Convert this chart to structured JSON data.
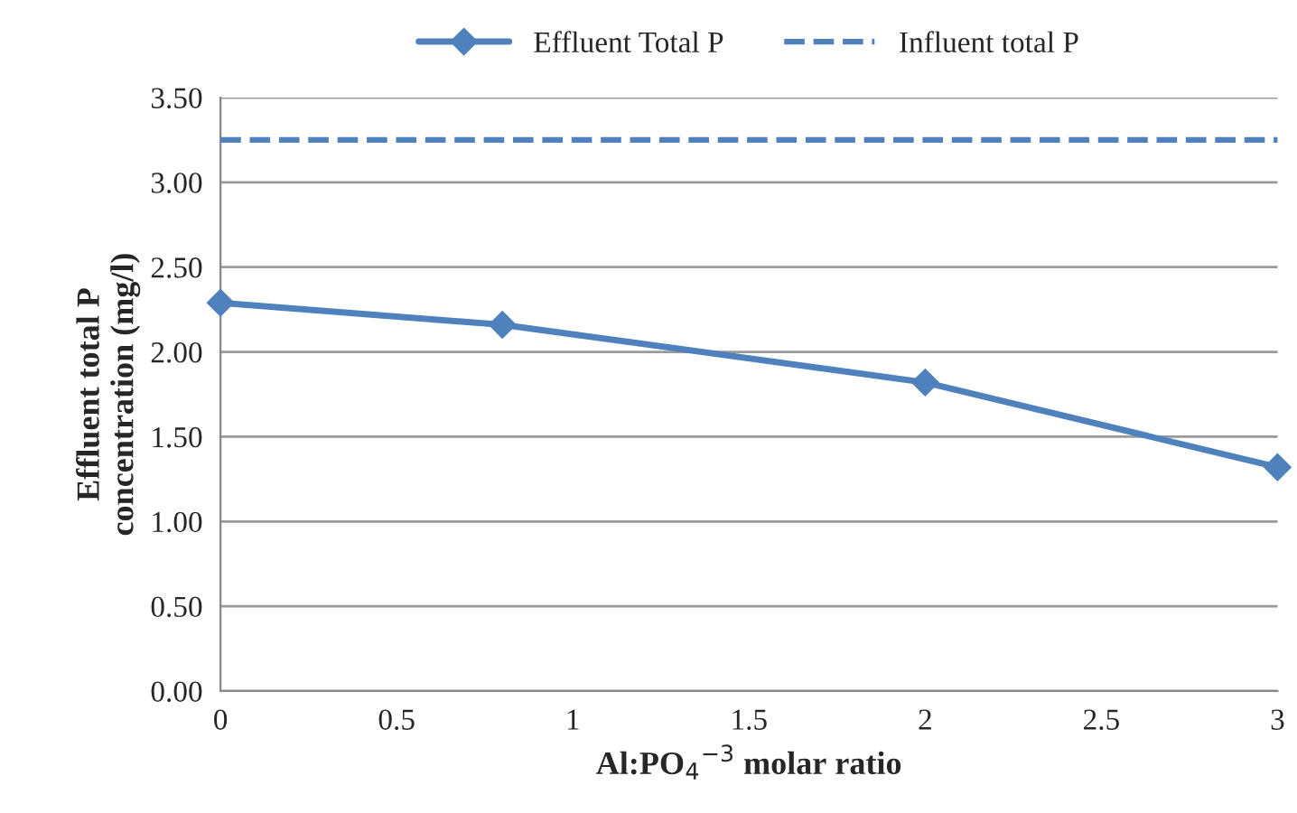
{
  "chart_data": {
    "type": "line",
    "xlabel": "Al:PO$_{4}$$^{−3}$ molar ratio",
    "ylabel": "Effluent total P\nconcentration (mg/l)",
    "series": [
      {
        "name": "Effluent Total P",
        "color": "#4f81bd",
        "marker": "diamond",
        "line_style": "solid",
        "x": [
          0,
          0.8,
          2,
          3
        ],
        "values": [
          2.29,
          2.16,
          1.82,
          1.32
        ]
      },
      {
        "name": "Influent total P",
        "color": "#4f81bd",
        "marker": "none",
        "line_style": "dashed",
        "x": [
          0,
          3
        ],
        "values": [
          3.25,
          3.25
        ]
      }
    ],
    "xlim": [
      0,
      3
    ],
    "xticks": [
      0,
      0.5,
      1,
      1.5,
      2,
      2.5,
      3
    ],
    "ylim": [
      0,
      3.5
    ],
    "yticks": [
      {
        "value": 0,
        "label": "0.00"
      },
      {
        "value": 0.5,
        "label": "0.50"
      },
      {
        "value": 1,
        "label": "1.00"
      },
      {
        "value": 1.5,
        "label": "1.50"
      },
      {
        "value": 2,
        "label": "2.00"
      },
      {
        "value": 2.5,
        "label": "2.50"
      },
      {
        "value": 3,
        "label": "3.00"
      },
      {
        "value": 3.5,
        "label": "3.50"
      }
    ],
    "grid": "y",
    "legend": "top"
  }
}
